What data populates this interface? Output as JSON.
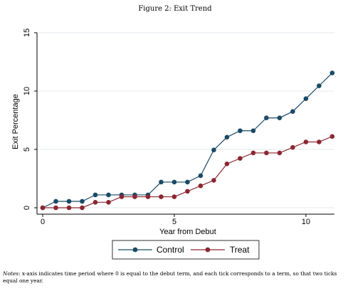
{
  "figure": {
    "title": "Figure 2: Exit Trend",
    "notes_label": "Notes",
    "notes_text": ": x-axis indicates time period where 0 is equal to the debut term, and each tick corresponds to a term, so that two ticks equal one year."
  },
  "chart_data": {
    "type": "line",
    "title": "Figure 2: Exit Trend",
    "xlabel": "Year from Debut",
    "ylabel": "Exit Percentage",
    "xlim": [
      0,
      11
    ],
    "ylim": [
      0,
      15
    ],
    "xticks": [
      0,
      5,
      10
    ],
    "yticks": [
      0,
      5,
      10,
      15
    ],
    "grid": "horizontal",
    "legend_position": "bottom",
    "x": [
      0,
      0.5,
      1,
      1.5,
      2,
      2.5,
      3,
      3.5,
      4,
      4.5,
      5,
      5.5,
      6,
      6.5,
      7,
      7.5,
      8,
      8.5,
      9,
      9.5,
      10,
      10.5,
      11
    ],
    "series": [
      {
        "name": "Control",
        "color": "#1a4a66",
        "values": [
          0,
          0.55,
          0.55,
          0.55,
          1.1,
          1.1,
          1.1,
          1.1,
          1.1,
          2.2,
          2.2,
          2.2,
          2.75,
          4.95,
          6.05,
          6.6,
          6.6,
          7.7,
          7.7,
          8.25,
          9.35,
          10.45,
          11.55
        ]
      },
      {
        "name": "Treat",
        "color": "#8b2732",
        "values": [
          0,
          0,
          0,
          0,
          0.47,
          0.47,
          0.94,
          0.94,
          0.94,
          0.94,
          0.94,
          1.41,
          1.88,
          2.35,
          3.76,
          4.23,
          4.7,
          4.7,
          4.7,
          5.17,
          5.64,
          5.64,
          6.11
        ]
      }
    ]
  }
}
